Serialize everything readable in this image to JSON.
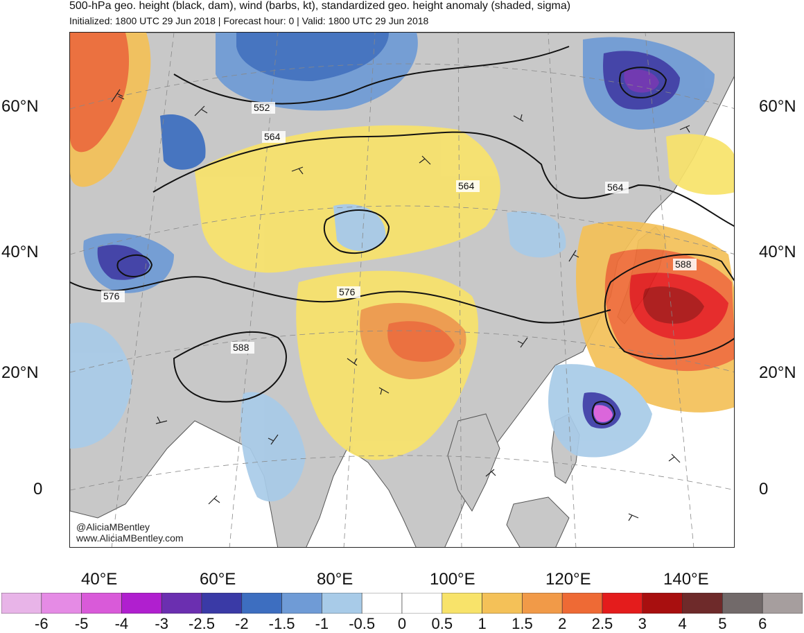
{
  "title": "500-hPa geo. height (black, dam), wind (barbs, kt), standardized geo. height anomaly (shaded, sigma)",
  "subtitle": "Initialized: 1800 UTC 29 Jun 2018 | Forecast hour: 0 | Valid: 1800 UTC 29 Jun 2018",
  "lat_labels": [
    "60°N",
    "40°N",
    "20°N",
    "0"
  ],
  "lon_labels": [
    "40°E",
    "60°E",
    "80°E",
    "100°E",
    "120°E",
    "140°E"
  ],
  "contour_labels": [
    "552",
    "564",
    "564",
    "564",
    "576",
    "576",
    "588",
    "588"
  ],
  "credit": {
    "handle": "@AliciaMBentley",
    "website": "www.AliciaMBentley.com"
  },
  "colorbar": {
    "tick_labels": [
      "-6",
      "-5",
      "-4",
      "-3",
      "-2.5",
      "-2",
      "-1.5",
      "-1",
      "-0.5",
      "0",
      "0.5",
      "1",
      "1.5",
      "2",
      "2.5",
      "3",
      "4",
      "5",
      "6"
    ],
    "colors": [
      "#e8b4e8",
      "#e58be5",
      "#d95ad9",
      "#b01fcf",
      "#6b2fb0",
      "#3a3aa6",
      "#3d6ec0",
      "#6f9bd6",
      "#a8cbe8",
      "#ffffff",
      "#ffffff",
      "#f8e36a",
      "#f4c158",
      "#f19a48",
      "#ee6a35",
      "#e41c1c",
      "#a80f0f",
      "#6e2a2a",
      "#726a6a",
      "#a69e9e"
    ]
  },
  "land_color": "#c8c8c8",
  "colors": {
    "strong_negative": "#3a3aa6",
    "moderate_negative": "#6f9bd6",
    "weak_negative": "#a8cbe8",
    "weak_positive": "#f8e36a",
    "moderate_positive": "#f19a48",
    "strong_positive": "#e41c1c"
  }
}
